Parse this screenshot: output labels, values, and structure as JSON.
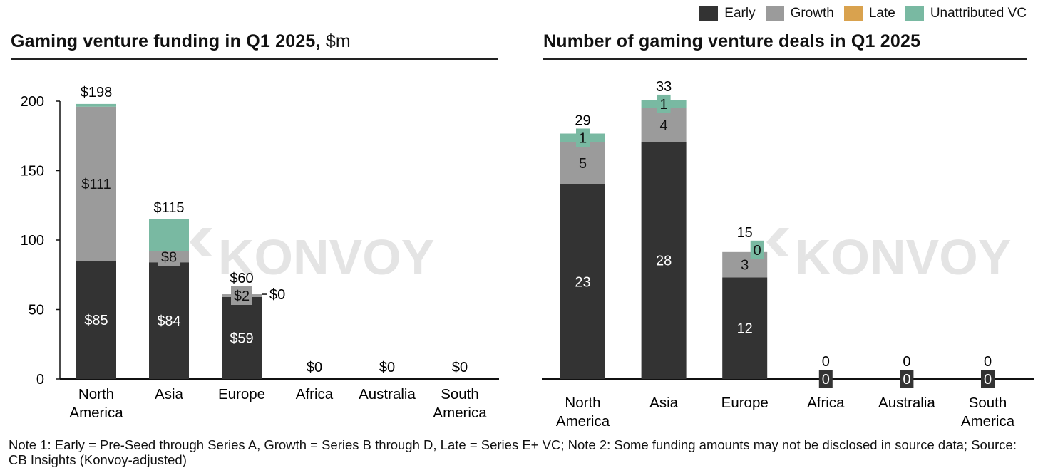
{
  "legend": [
    {
      "label": "Early",
      "color": "#333333"
    },
    {
      "label": "Growth",
      "color": "#9b9b9b"
    },
    {
      "label": "Late",
      "color": "#d9a24e"
    },
    {
      "label": "Unattributed VC",
      "color": "#79b9a2"
    }
  ],
  "watermark": "KONVOY",
  "note": "Note 1: Early = Pre-Seed through Series A, Growth = Series B through D, Late = Series E+ VC; Note 2: Some funding amounts may not be disclosed in source data; Source: CB Insights (Konvoy-adjusted)",
  "chart_data": [
    {
      "type": "bar",
      "stacked": true,
      "title": "Gaming venture funding in Q1 2025,",
      "title_unit": "$m",
      "ylabel": "$m",
      "ylim": [
        0,
        200
      ],
      "yticks": [
        0,
        50,
        100,
        150,
        200
      ],
      "categories": [
        "North America",
        "Asia",
        "Europe",
        "Africa",
        "Australia",
        "South America"
      ],
      "series": [
        {
          "name": "Early",
          "values": [
            85,
            84,
            59,
            0,
            0,
            0
          ],
          "labels": [
            "$85",
            "$84",
            "$59",
            "",
            "",
            ""
          ]
        },
        {
          "name": "Growth",
          "values": [
            111,
            8,
            2,
            0,
            0,
            0
          ],
          "labels": [
            "$111",
            "$8",
            "$2",
            "",
            "",
            ""
          ]
        },
        {
          "name": "Late",
          "values": [
            0,
            0,
            0,
            0,
            0,
            0
          ],
          "labels": [
            "",
            "",
            "",
            "",
            "",
            ""
          ]
        },
        {
          "name": "Unattributed VC",
          "values": [
            2,
            23,
            0,
            0,
            0,
            0
          ],
          "labels": [
            "",
            "",
            "$0",
            "",
            "",
            ""
          ]
        }
      ],
      "totals": [
        "$198",
        "$115",
        "$60",
        "$0",
        "$0",
        "$0"
      ]
    },
    {
      "type": "bar",
      "stacked": true,
      "title": "Number of gaming venture deals in Q1 2025",
      "title_unit": "",
      "ylim": [
        0,
        33
      ],
      "categories": [
        "North America",
        "Asia",
        "Europe",
        "Africa",
        "Australia",
        "South America"
      ],
      "series": [
        {
          "name": "Early",
          "values": [
            23,
            28,
            12,
            0,
            0,
            0
          ],
          "labels": [
            "23",
            "28",
            "12",
            "0",
            "0",
            "0"
          ]
        },
        {
          "name": "Growth",
          "values": [
            5,
            4,
            3,
            0,
            0,
            0
          ],
          "labels": [
            "5",
            "4",
            "3",
            "",
            "",
            ""
          ]
        },
        {
          "name": "Late",
          "values": [
            0,
            0,
            0,
            0,
            0,
            0
          ],
          "labels": [
            "",
            "",
            "",
            "",
            "",
            ""
          ]
        },
        {
          "name": "Unattributed VC",
          "values": [
            1,
            1,
            0,
            0,
            0,
            0
          ],
          "labels": [
            "1",
            "1",
            "0",
            "",
            "",
            ""
          ]
        }
      ],
      "totals": [
        "29",
        "33",
        "15",
        "0",
        "0",
        "0"
      ]
    }
  ]
}
